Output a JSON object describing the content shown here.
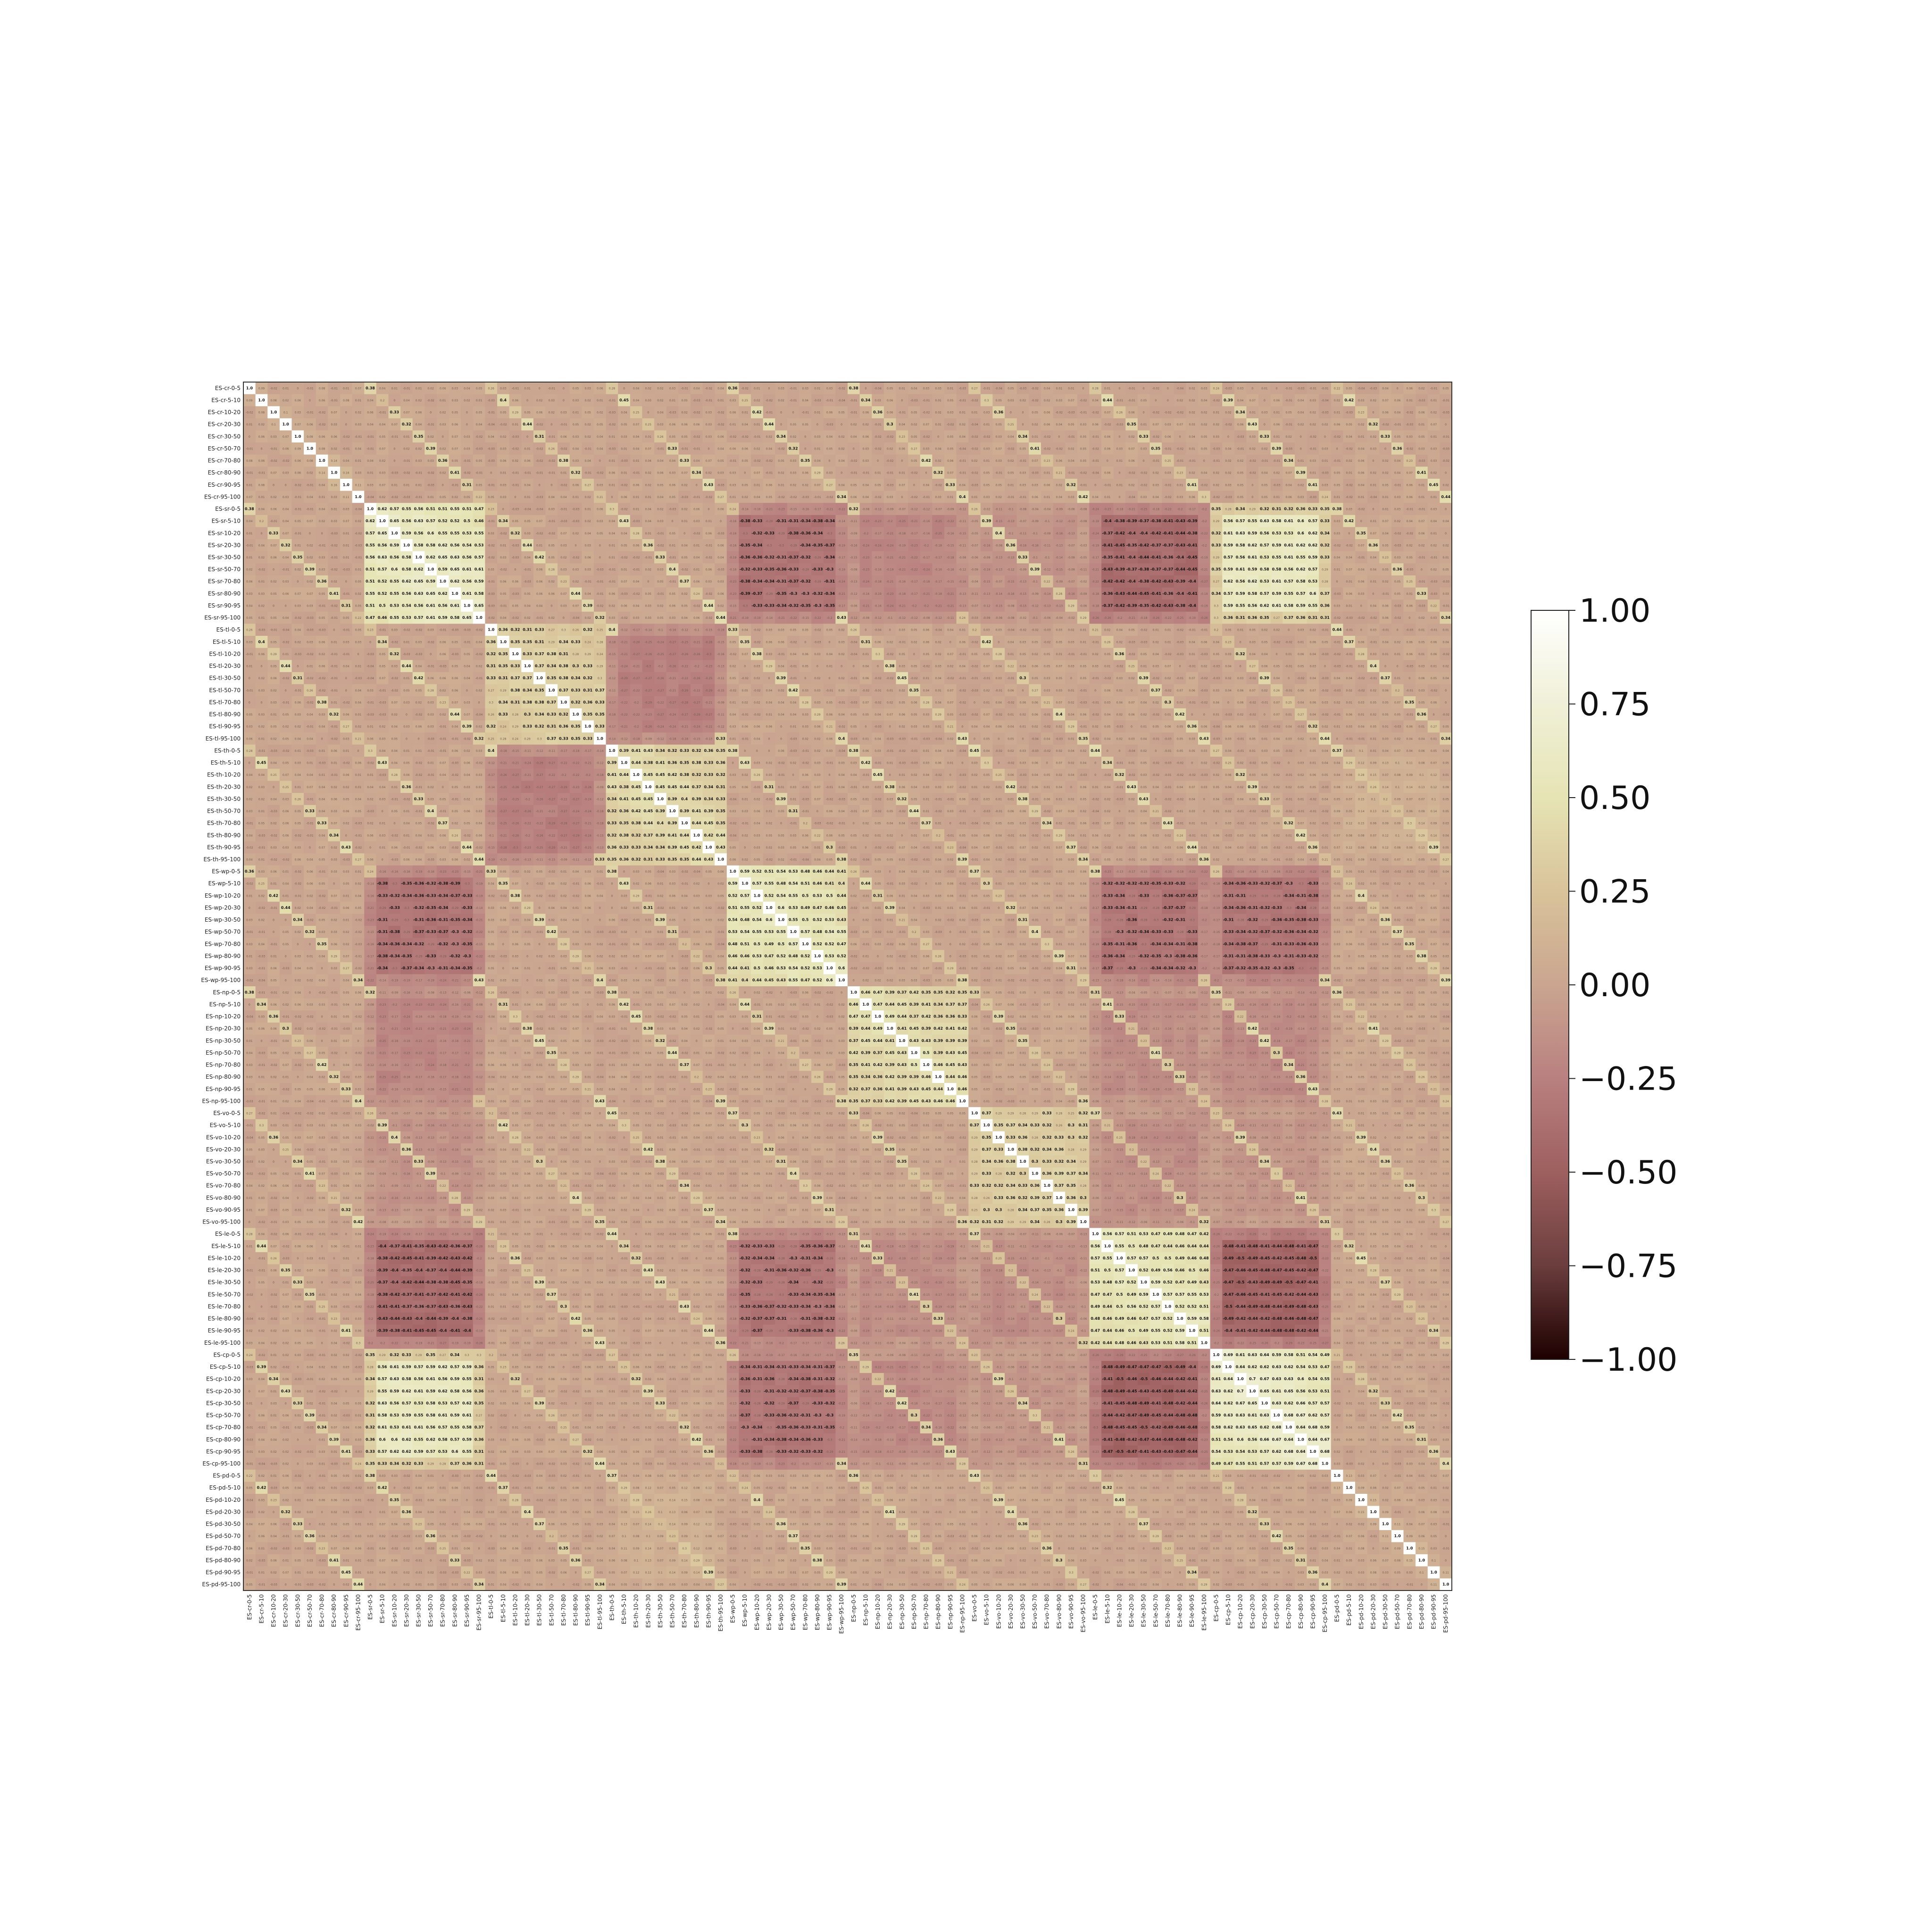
{
  "chart_data": {
    "type": "heatmap",
    "title": "",
    "xlabel": "",
    "ylabel": "",
    "groups": [
      "cr",
      "sr",
      "tl",
      "th",
      "wp",
      "np",
      "vo",
      "le",
      "cp",
      "pd"
    ],
    "bins": [
      "0-5",
      "5-10",
      "10-20",
      "20-30",
      "30-50",
      "50-70",
      "70-80",
      "80-90",
      "90-95",
      "95-100"
    ],
    "label_prefix": "ES-",
    "value_range": [
      -1.0,
      1.0
    ],
    "colorbar": {
      "ticks": [
        1.0,
        0.75,
        0.5,
        0.25,
        0.0,
        -0.25,
        -0.5,
        -0.75,
        -1.0
      ],
      "tick_labels": [
        "1.00",
        "0.75",
        "0.50",
        "0.25",
        "0.00",
        "−0.25",
        "−0.50",
        "−0.75",
        "−1.00"
      ],
      "colormap": "pink",
      "position": "right"
    },
    "diagonal_value": "1.0",
    "annotation_threshold": 0.3,
    "group_block_summary": {
      "description_values": "approximate within/between group correlation levels read from the figure",
      "within": {
        "cr": 0.05,
        "sr": 0.62,
        "tl": 0.35,
        "th": 0.42,
        "wp": 0.55,
        "np": 0.45,
        "vo": 0.35,
        "le": 0.55,
        "cp": 0.65,
        "pd": 0.05
      },
      "between": [
        [
          "sr",
          "wp",
          -0.34
        ],
        [
          "sr",
          "le",
          -0.4
        ],
        [
          "sr",
          "cp",
          0.58
        ],
        [
          "wp",
          "le",
          -0.33
        ],
        [
          "wp",
          "cp",
          -0.33
        ],
        [
          "le",
          "cp",
          -0.45
        ],
        [
          "sr",
          "np",
          -0.2
        ],
        [
          "np",
          "le",
          -0.15
        ],
        [
          "np",
          "cp",
          -0.18
        ],
        [
          "tl",
          "th",
          -0.25
        ],
        [
          "sr",
          "vo",
          -0.12
        ],
        [
          "vo",
          "le",
          -0.15
        ],
        [
          "vo",
          "cp",
          -0.1
        ],
        [
          "th",
          "pd",
          0.1
        ]
      ]
    },
    "grid": false
  }
}
